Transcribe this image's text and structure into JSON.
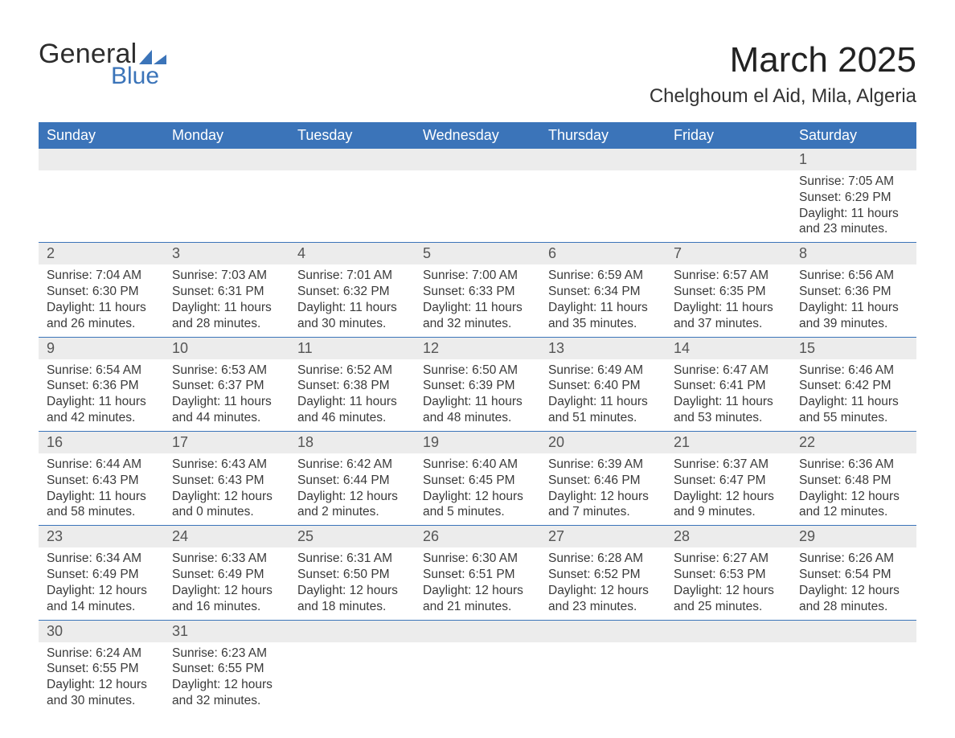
{
  "brand": {
    "general": "General",
    "blue": "Blue",
    "logo_color": "#3b74b9"
  },
  "header": {
    "month_title": "March 2025",
    "location": "Chelghoum el Aid, Mila, Algeria"
  },
  "styling": {
    "header_bg": "#3b74b9",
    "header_text": "#ffffff",
    "daynum_bg": "#ececec",
    "row_border": "#3b74b9",
    "body_text": "#3a3a3a",
    "font_family": "Arial",
    "th_fontsize": 18,
    "daynum_fontsize": 18,
    "cell_fontsize": 15.5
  },
  "calendar": {
    "type": "table",
    "columns": [
      "Sunday",
      "Monday",
      "Tuesday",
      "Wednesday",
      "Thursday",
      "Friday",
      "Saturday"
    ],
    "weeks": [
      [
        null,
        null,
        null,
        null,
        null,
        null,
        {
          "day": "1",
          "sunrise": "Sunrise: 7:05 AM",
          "sunset": "Sunset: 6:29 PM",
          "daylight1": "Daylight: 11 hours",
          "daylight2": "and 23 minutes."
        }
      ],
      [
        {
          "day": "2",
          "sunrise": "Sunrise: 7:04 AM",
          "sunset": "Sunset: 6:30 PM",
          "daylight1": "Daylight: 11 hours",
          "daylight2": "and 26 minutes."
        },
        {
          "day": "3",
          "sunrise": "Sunrise: 7:03 AM",
          "sunset": "Sunset: 6:31 PM",
          "daylight1": "Daylight: 11 hours",
          "daylight2": "and 28 minutes."
        },
        {
          "day": "4",
          "sunrise": "Sunrise: 7:01 AM",
          "sunset": "Sunset: 6:32 PM",
          "daylight1": "Daylight: 11 hours",
          "daylight2": "and 30 minutes."
        },
        {
          "day": "5",
          "sunrise": "Sunrise: 7:00 AM",
          "sunset": "Sunset: 6:33 PM",
          "daylight1": "Daylight: 11 hours",
          "daylight2": "and 32 minutes."
        },
        {
          "day": "6",
          "sunrise": "Sunrise: 6:59 AM",
          "sunset": "Sunset: 6:34 PM",
          "daylight1": "Daylight: 11 hours",
          "daylight2": "and 35 minutes."
        },
        {
          "day": "7",
          "sunrise": "Sunrise: 6:57 AM",
          "sunset": "Sunset: 6:35 PM",
          "daylight1": "Daylight: 11 hours",
          "daylight2": "and 37 minutes."
        },
        {
          "day": "8",
          "sunrise": "Sunrise: 6:56 AM",
          "sunset": "Sunset: 6:36 PM",
          "daylight1": "Daylight: 11 hours",
          "daylight2": "and 39 minutes."
        }
      ],
      [
        {
          "day": "9",
          "sunrise": "Sunrise: 6:54 AM",
          "sunset": "Sunset: 6:36 PM",
          "daylight1": "Daylight: 11 hours",
          "daylight2": "and 42 minutes."
        },
        {
          "day": "10",
          "sunrise": "Sunrise: 6:53 AM",
          "sunset": "Sunset: 6:37 PM",
          "daylight1": "Daylight: 11 hours",
          "daylight2": "and 44 minutes."
        },
        {
          "day": "11",
          "sunrise": "Sunrise: 6:52 AM",
          "sunset": "Sunset: 6:38 PM",
          "daylight1": "Daylight: 11 hours",
          "daylight2": "and 46 minutes."
        },
        {
          "day": "12",
          "sunrise": "Sunrise: 6:50 AM",
          "sunset": "Sunset: 6:39 PM",
          "daylight1": "Daylight: 11 hours",
          "daylight2": "and 48 minutes."
        },
        {
          "day": "13",
          "sunrise": "Sunrise: 6:49 AM",
          "sunset": "Sunset: 6:40 PM",
          "daylight1": "Daylight: 11 hours",
          "daylight2": "and 51 minutes."
        },
        {
          "day": "14",
          "sunrise": "Sunrise: 6:47 AM",
          "sunset": "Sunset: 6:41 PM",
          "daylight1": "Daylight: 11 hours",
          "daylight2": "and 53 minutes."
        },
        {
          "day": "15",
          "sunrise": "Sunrise: 6:46 AM",
          "sunset": "Sunset: 6:42 PM",
          "daylight1": "Daylight: 11 hours",
          "daylight2": "and 55 minutes."
        }
      ],
      [
        {
          "day": "16",
          "sunrise": "Sunrise: 6:44 AM",
          "sunset": "Sunset: 6:43 PM",
          "daylight1": "Daylight: 11 hours",
          "daylight2": "and 58 minutes."
        },
        {
          "day": "17",
          "sunrise": "Sunrise: 6:43 AM",
          "sunset": "Sunset: 6:43 PM",
          "daylight1": "Daylight: 12 hours",
          "daylight2": "and 0 minutes."
        },
        {
          "day": "18",
          "sunrise": "Sunrise: 6:42 AM",
          "sunset": "Sunset: 6:44 PM",
          "daylight1": "Daylight: 12 hours",
          "daylight2": "and 2 minutes."
        },
        {
          "day": "19",
          "sunrise": "Sunrise: 6:40 AM",
          "sunset": "Sunset: 6:45 PM",
          "daylight1": "Daylight: 12 hours",
          "daylight2": "and 5 minutes."
        },
        {
          "day": "20",
          "sunrise": "Sunrise: 6:39 AM",
          "sunset": "Sunset: 6:46 PM",
          "daylight1": "Daylight: 12 hours",
          "daylight2": "and 7 minutes."
        },
        {
          "day": "21",
          "sunrise": "Sunrise: 6:37 AM",
          "sunset": "Sunset: 6:47 PM",
          "daylight1": "Daylight: 12 hours",
          "daylight2": "and 9 minutes."
        },
        {
          "day": "22",
          "sunrise": "Sunrise: 6:36 AM",
          "sunset": "Sunset: 6:48 PM",
          "daylight1": "Daylight: 12 hours",
          "daylight2": "and 12 minutes."
        }
      ],
      [
        {
          "day": "23",
          "sunrise": "Sunrise: 6:34 AM",
          "sunset": "Sunset: 6:49 PM",
          "daylight1": "Daylight: 12 hours",
          "daylight2": "and 14 minutes."
        },
        {
          "day": "24",
          "sunrise": "Sunrise: 6:33 AM",
          "sunset": "Sunset: 6:49 PM",
          "daylight1": "Daylight: 12 hours",
          "daylight2": "and 16 minutes."
        },
        {
          "day": "25",
          "sunrise": "Sunrise: 6:31 AM",
          "sunset": "Sunset: 6:50 PM",
          "daylight1": "Daylight: 12 hours",
          "daylight2": "and 18 minutes."
        },
        {
          "day": "26",
          "sunrise": "Sunrise: 6:30 AM",
          "sunset": "Sunset: 6:51 PM",
          "daylight1": "Daylight: 12 hours",
          "daylight2": "and 21 minutes."
        },
        {
          "day": "27",
          "sunrise": "Sunrise: 6:28 AM",
          "sunset": "Sunset: 6:52 PM",
          "daylight1": "Daylight: 12 hours",
          "daylight2": "and 23 minutes."
        },
        {
          "day": "28",
          "sunrise": "Sunrise: 6:27 AM",
          "sunset": "Sunset: 6:53 PM",
          "daylight1": "Daylight: 12 hours",
          "daylight2": "and 25 minutes."
        },
        {
          "day": "29",
          "sunrise": "Sunrise: 6:26 AM",
          "sunset": "Sunset: 6:54 PM",
          "daylight1": "Daylight: 12 hours",
          "daylight2": "and 28 minutes."
        }
      ],
      [
        {
          "day": "30",
          "sunrise": "Sunrise: 6:24 AM",
          "sunset": "Sunset: 6:55 PM",
          "daylight1": "Daylight: 12 hours",
          "daylight2": "and 30 minutes."
        },
        {
          "day": "31",
          "sunrise": "Sunrise: 6:23 AM",
          "sunset": "Sunset: 6:55 PM",
          "daylight1": "Daylight: 12 hours",
          "daylight2": "and 32 minutes."
        },
        null,
        null,
        null,
        null,
        null
      ]
    ]
  }
}
